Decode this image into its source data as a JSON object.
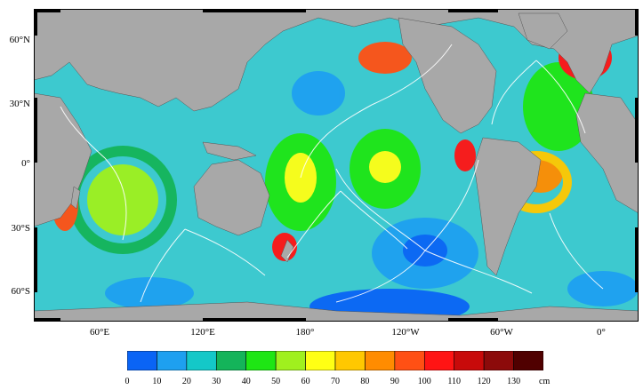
{
  "map": {
    "lat_labels": [
      "60°N",
      "30°N",
      "0°",
      "30°S",
      "60°S"
    ],
    "lon_labels": [
      "60°E",
      "120°E",
      "180°",
      "120°W",
      "60°W",
      "0°"
    ]
  },
  "colorbar": {
    "ticks": [
      "0",
      "10",
      "20",
      "30",
      "40",
      "50",
      "60",
      "70",
      "80",
      "90",
      "100",
      "110",
      "120",
      "130"
    ],
    "unit": "cm",
    "colors": [
      "#0a64f5",
      "#1ea0f0",
      "#14c8c8",
      "#14b45a",
      "#1ee614",
      "#a0f01e",
      "#ffff14",
      "#ffc800",
      "#ff8c00",
      "#ff5014",
      "#ff1414",
      "#c80a0a",
      "#8c0a0a",
      "#500000"
    ]
  },
  "colors": {
    "land": "#a8a8a8",
    "ocean_base": "#3dc9cf",
    "cotidal_lines": "#ffffff",
    "frame": "#000000"
  }
}
